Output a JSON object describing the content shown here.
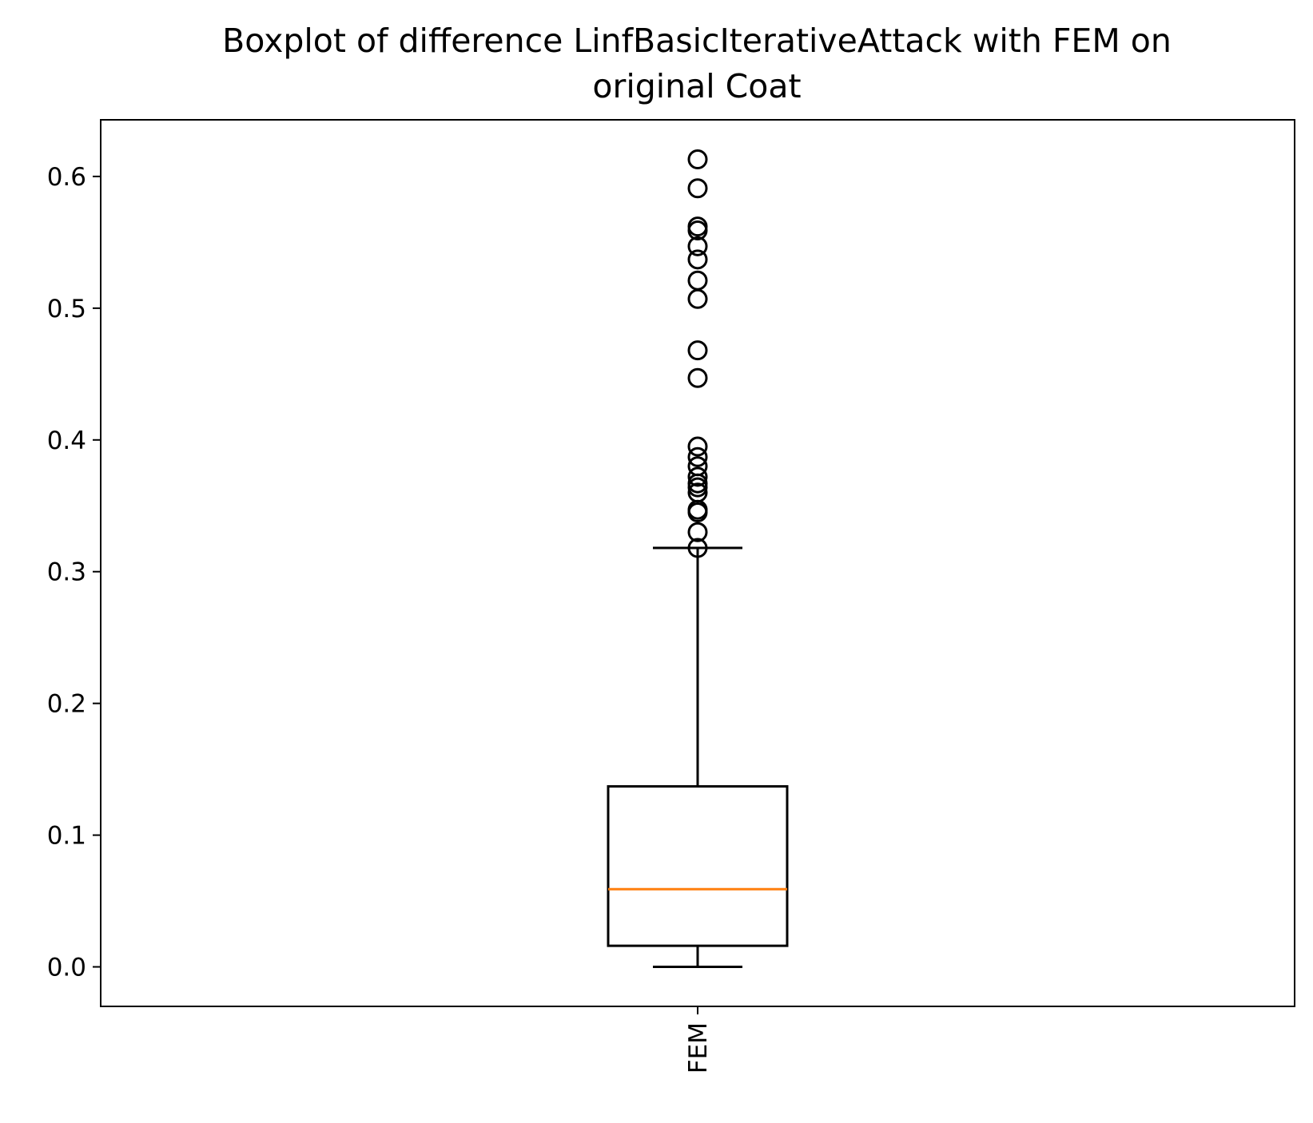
{
  "chart_data": {
    "type": "boxplot",
    "title": "Boxplot of difference LinfBasicIterativeAttack with FEM on original Coat",
    "title_lines": [
      "Boxplot of difference LinfBasicIterativeAttack with FEM on",
      "original Coat"
    ],
    "xlabel": "",
    "ylabel": "",
    "categories": [
      "FEM"
    ],
    "ylim": [
      -0.03,
      0.643
    ],
    "yticks": [
      0.0,
      0.1,
      0.2,
      0.3,
      0.4,
      0.5,
      0.6
    ],
    "ytick_labels": [
      "0.0",
      "0.1",
      "0.2",
      "0.3",
      "0.4",
      "0.5",
      "0.6"
    ],
    "grid": false,
    "boxes": [
      {
        "category": "FEM",
        "whisker_low": 0.0,
        "q1": 0.016,
        "median": 0.059,
        "q3": 0.137,
        "whisker_high": 0.318,
        "outliers": [
          0.318,
          0.33,
          0.345,
          0.347,
          0.36,
          0.364,
          0.367,
          0.372,
          0.38,
          0.387,
          0.395,
          0.447,
          0.468,
          0.507,
          0.521,
          0.537,
          0.547,
          0.559,
          0.562,
          0.591,
          0.613
        ]
      }
    ],
    "colors": {
      "median": "#ff7f0e",
      "box": "#000000",
      "outlier": "#000000"
    }
  }
}
